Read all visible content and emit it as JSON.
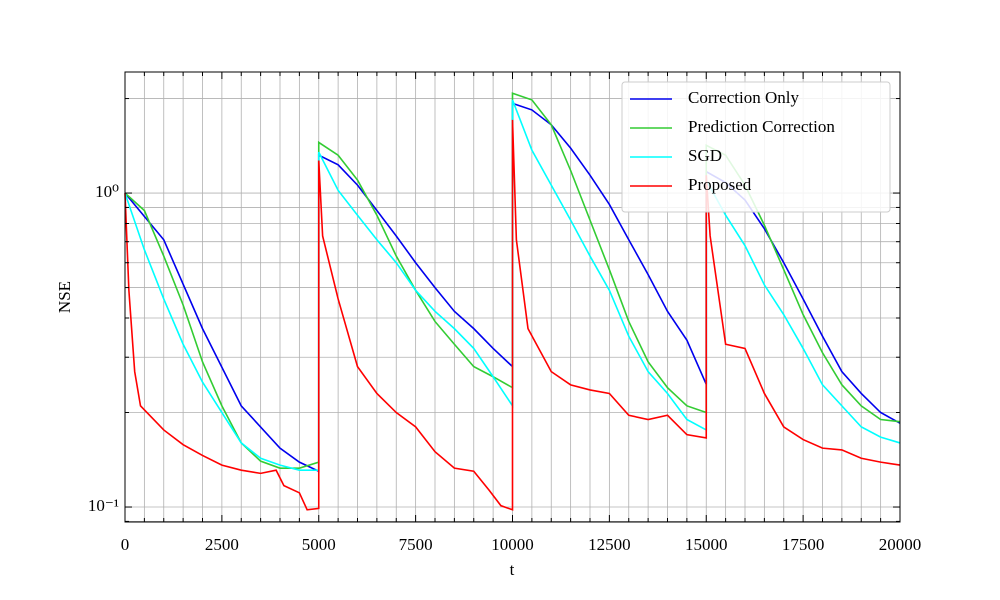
{
  "chart_data": {
    "type": "line",
    "x_label": "t",
    "y_label": "NSE",
    "log_y": true,
    "grid": true,
    "legend": "upper right",
    "xlim": [
      0,
      20000
    ],
    "xticks": [
      0,
      2500,
      5000,
      7500,
      10000,
      12500,
      15000,
      17500,
      20000
    ],
    "xminorticks": [
      500,
      1000,
      1500,
      2000,
      3000,
      3500,
      4000,
      4500,
      5500,
      6000,
      6500,
      7000,
      8000,
      8500,
      9000,
      9500,
      10500,
      11000,
      11500,
      12000,
      13000,
      13500,
      14000,
      14500,
      15500,
      16000,
      16500,
      17000,
      18000,
      18500,
      19000,
      19500
    ],
    "ylim": [
      0.0896,
      2.43
    ],
    "yticks": [
      {
        "value": 0.1,
        "label": "10⁻¹"
      },
      {
        "value": 1,
        "label": "10⁰"
      }
    ],
    "yminorticks": [
      0.09,
      0.2,
      0.3,
      0.4,
      0.5,
      0.6,
      0.7,
      0.8,
      0.9,
      2
    ],
    "series": [
      {
        "name": "Correction Only",
        "color": "#0000ee",
        "x": [
          0,
          1000,
          2000,
          3000,
          4000,
          4500,
          5000,
          5000,
          5500,
          6000,
          6500,
          7000,
          7500,
          8000,
          8500,
          9000,
          9500,
          10000,
          10000,
          10500,
          11000,
          11500,
          12000,
          12500,
          13000,
          13500,
          14000,
          14500,
          15000,
          15000,
          15500,
          16000,
          16500,
          17000,
          17500,
          18000,
          18500,
          19000,
          19500,
          20000
        ],
        "values": [
          1.0,
          0.71,
          0.37,
          0.21,
          0.154,
          0.139,
          0.13,
          1.32,
          1.23,
          1.06,
          0.88,
          0.73,
          0.6,
          0.5,
          0.42,
          0.37,
          0.32,
          0.28,
          1.93,
          1.84,
          1.65,
          1.39,
          1.14,
          0.92,
          0.71,
          0.55,
          0.42,
          0.34,
          0.246,
          1.17,
          1.08,
          0.95,
          0.77,
          0.6,
          0.46,
          0.35,
          0.27,
          0.23,
          0.2,
          0.185
        ]
      },
      {
        "name": "Prediction Correction",
        "color": "#33cc33",
        "x": [
          0,
          500,
          1000,
          1500,
          2000,
          2500,
          3000,
          3500,
          4000,
          4500,
          5000,
          5000,
          5500,
          6000,
          6500,
          7000,
          7500,
          8000,
          8500,
          9000,
          9500,
          10000,
          10000,
          10500,
          11000,
          11500,
          12000,
          12500,
          13000,
          13500,
          14000,
          14500,
          15000,
          15000,
          15500,
          16000,
          16500,
          17000,
          17500,
          18000,
          18500,
          19000,
          19500,
          20000
        ],
        "values": [
          1.0,
          0.88,
          0.63,
          0.44,
          0.29,
          0.21,
          0.16,
          0.14,
          0.133,
          0.133,
          0.139,
          1.45,
          1.32,
          1.1,
          0.85,
          0.63,
          0.49,
          0.39,
          0.33,
          0.28,
          0.26,
          0.24,
          2.08,
          1.98,
          1.65,
          1.18,
          0.82,
          0.57,
          0.39,
          0.29,
          0.24,
          0.21,
          0.2,
          1.42,
          1.32,
          1.06,
          0.79,
          0.57,
          0.41,
          0.31,
          0.245,
          0.21,
          0.19,
          0.187
        ]
      },
      {
        "name": "SGD",
        "color": "#00ffff",
        "x": [
          0,
          500,
          1000,
          1500,
          2000,
          2500,
          3000,
          3500,
          4000,
          4500,
          5000,
          5000,
          5500,
          6000,
          6500,
          7000,
          7500,
          8000,
          8500,
          9000,
          9500,
          10000,
          10000,
          10500,
          11000,
          11500,
          12000,
          12500,
          13000,
          13500,
          14000,
          14500,
          15000,
          15000,
          15500,
          16000,
          16500,
          17000,
          17500,
          18000,
          18500,
          19000,
          19500,
          20000
        ],
        "values": [
          1.0,
          0.66,
          0.46,
          0.33,
          0.25,
          0.2,
          0.16,
          0.143,
          0.136,
          0.131,
          0.131,
          1.35,
          1.02,
          0.85,
          0.71,
          0.6,
          0.49,
          0.42,
          0.37,
          0.32,
          0.26,
          0.21,
          1.98,
          1.37,
          1.06,
          0.82,
          0.63,
          0.49,
          0.35,
          0.27,
          0.23,
          0.19,
          0.176,
          1.1,
          0.85,
          0.68,
          0.51,
          0.41,
          0.32,
          0.245,
          0.21,
          0.18,
          0.167,
          0.16
        ]
      },
      {
        "name": "Proposed",
        "color": "#ff0000",
        "x": [
          0,
          100,
          250,
          400,
          1000,
          1500,
          2000,
          2500,
          3000,
          3500,
          3900,
          4100,
          4500,
          4700,
          5000,
          5000,
          5100,
          5500,
          6000,
          6500,
          7000,
          7500,
          8000,
          8500,
          9000,
          9400,
          9700,
          10000,
          10000,
          10100,
          10400,
          11000,
          11500,
          12000,
          12500,
          13000,
          13500,
          14000,
          14500,
          15000,
          15000,
          15100,
          15500,
          16000,
          16500,
          17000,
          17500,
          18000,
          18500,
          19000,
          19500,
          20000
        ],
        "values": [
          1.0,
          0.49,
          0.27,
          0.21,
          0.176,
          0.158,
          0.146,
          0.136,
          0.131,
          0.128,
          0.131,
          0.117,
          0.111,
          0.098,
          0.099,
          1.27,
          0.73,
          0.46,
          0.28,
          0.23,
          0.2,
          0.18,
          0.15,
          0.133,
          0.13,
          0.113,
          0.101,
          0.098,
          1.71,
          0.71,
          0.37,
          0.27,
          0.245,
          0.236,
          0.23,
          0.196,
          0.19,
          0.196,
          0.17,
          0.166,
          1.14,
          0.73,
          0.33,
          0.32,
          0.23,
          0.18,
          0.164,
          0.154,
          0.152,
          0.143,
          0.139,
          0.136
        ]
      }
    ]
  }
}
